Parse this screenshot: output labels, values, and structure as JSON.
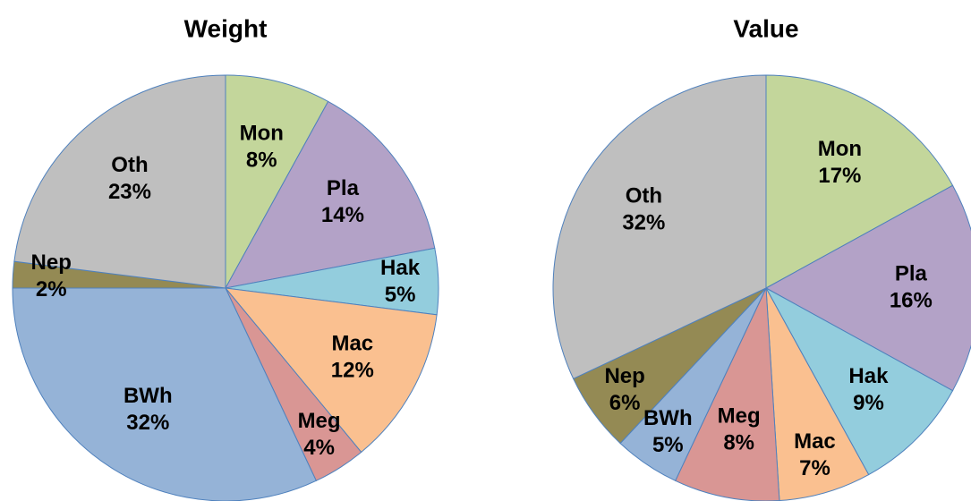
{
  "chart_data": [
    {
      "type": "pie",
      "title": "Weight",
      "categories": [
        "Mon",
        "Pla",
        "Hak",
        "Mac",
        "Meg",
        "BWh",
        "Nep",
        "Oth"
      ],
      "values": [
        8,
        14,
        5,
        12,
        4,
        32,
        2,
        23
      ],
      "value_labels": [
        "8%",
        "14%",
        "5%",
        "12%",
        "4%",
        "32%",
        "2%",
        "23%"
      ],
      "colors": [
        "#c3d69b",
        "#b3a2c7",
        "#93cddd",
        "#fac090",
        "#d99694",
        "#95b3d7",
        "#948a54",
        "#bfbfbf"
      ]
    },
    {
      "type": "pie",
      "title": "Value",
      "categories": [
        "Mon",
        "Pla",
        "Hak",
        "Mac",
        "Meg",
        "BWh",
        "Nep",
        "Oth"
      ],
      "values": [
        17,
        16,
        9,
        7,
        8,
        5,
        6,
        32
      ],
      "value_labels": [
        "17%",
        "16%",
        "9%",
        "7%",
        "8%",
        "5%",
        "6%",
        "32%"
      ],
      "colors": [
        "#c3d69b",
        "#b3a2c7",
        "#93cddd",
        "#fac090",
        "#d99694",
        "#95b3d7",
        "#948a54",
        "#bfbfbf"
      ]
    }
  ]
}
